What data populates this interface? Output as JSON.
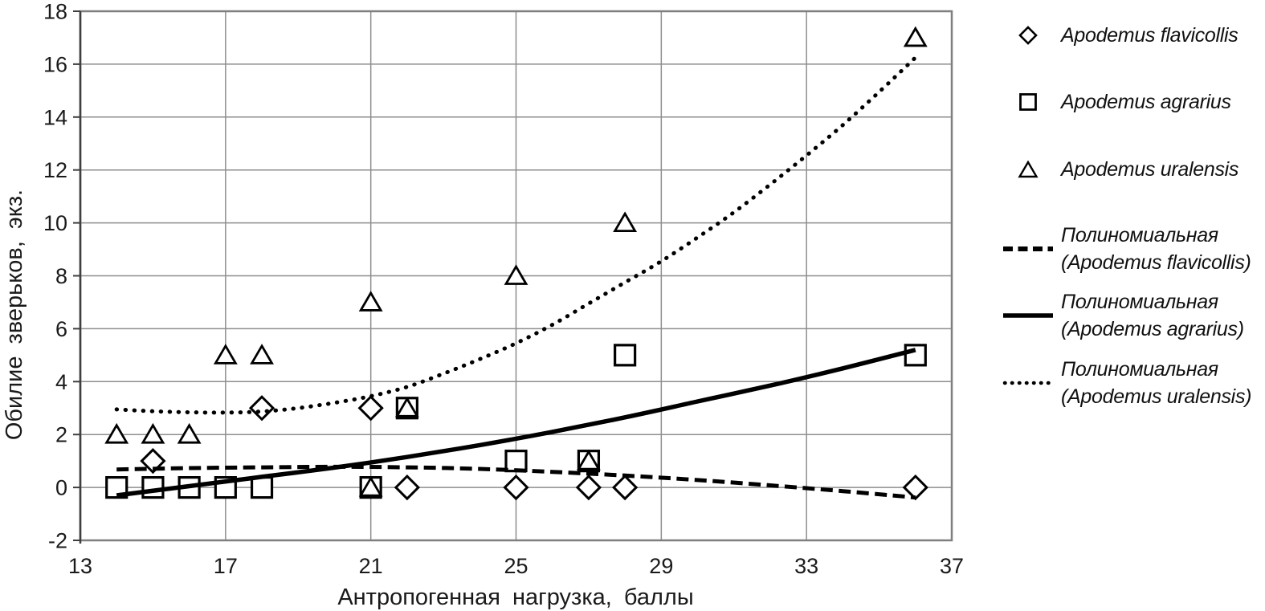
{
  "chart_data": {
    "type": "scatter",
    "title": "",
    "xlabel": "Антропогенная нагрузка, баллы",
    "ylabel": "Обилие зверьков, экз.",
    "xlim": [
      13,
      37
    ],
    "ylim": [
      -2,
      18
    ],
    "xticks": [
      13,
      17,
      21,
      25,
      29,
      33,
      37
    ],
    "yticks": [
      -2,
      0,
      2,
      4,
      6,
      8,
      10,
      12,
      14,
      16,
      18
    ],
    "grid": true,
    "legend_position": "right",
    "series": [
      {
        "name": "Apodemus flavicollis",
        "marker": "diamond",
        "points": [
          [
            15,
            1
          ],
          [
            18,
            3
          ],
          [
            21,
            3
          ],
          [
            22,
            0
          ],
          [
            25,
            0
          ],
          [
            27,
            0
          ],
          [
            28,
            0
          ],
          [
            36,
            0
          ]
        ]
      },
      {
        "name": "Apodemus agrarius",
        "marker": "square",
        "points": [
          [
            14,
            0
          ],
          [
            15,
            0
          ],
          [
            16,
            0
          ],
          [
            17,
            0
          ],
          [
            18,
            0
          ],
          [
            21,
            0
          ],
          [
            22,
            3
          ],
          [
            25,
            1
          ],
          [
            27,
            1
          ],
          [
            28,
            5
          ],
          [
            36,
            5
          ]
        ]
      },
      {
        "name": "Apodemus uralensis",
        "marker": "triangle",
        "points": [
          [
            14,
            2
          ],
          [
            15,
            2
          ],
          [
            16,
            2
          ],
          [
            17,
            5
          ],
          [
            18,
            5
          ],
          [
            21,
            0
          ],
          [
            21,
            7
          ],
          [
            22,
            3
          ],
          [
            25,
            8
          ],
          [
            27,
            1
          ],
          [
            28,
            10
          ],
          [
            36,
            17
          ]
        ]
      }
    ],
    "trendlines": [
      {
        "name": "Полиномиальная (Apodemus flavicollis)",
        "style": "dashed",
        "points": [
          [
            14,
            0.68
          ],
          [
            16,
            0.73
          ],
          [
            18,
            0.76
          ],
          [
            20,
            0.78
          ],
          [
            22,
            0.76
          ],
          [
            24,
            0.7
          ],
          [
            26,
            0.59
          ],
          [
            28,
            0.45
          ],
          [
            30,
            0.28
          ],
          [
            32,
            0.08
          ],
          [
            34,
            -0.14
          ],
          [
            36,
            -0.38
          ]
        ]
      },
      {
        "name": "Полиномиальная (Apodemus agrarius)",
        "style": "solid",
        "points": [
          [
            14,
            -0.3
          ],
          [
            16,
            0.05
          ],
          [
            18,
            0.4
          ],
          [
            20,
            0.75
          ],
          [
            22,
            1.15
          ],
          [
            24,
            1.6
          ],
          [
            26,
            2.1
          ],
          [
            28,
            2.65
          ],
          [
            30,
            3.25
          ],
          [
            32,
            3.85
          ],
          [
            34,
            4.5
          ],
          [
            36,
            5.2
          ]
        ]
      },
      {
        "name": "Полиномиальная (Apodemus uralensis)",
        "style": "dotted",
        "points": [
          [
            14,
            2.95
          ],
          [
            15,
            2.88
          ],
          [
            16,
            2.84
          ],
          [
            17,
            2.83
          ],
          [
            18,
            2.87
          ],
          [
            19,
            3.0
          ],
          [
            20,
            3.2
          ],
          [
            21,
            3.45
          ],
          [
            22,
            3.8
          ],
          [
            23,
            4.3
          ],
          [
            24,
            4.85
          ],
          [
            25,
            5.45
          ],
          [
            26,
            6.15
          ],
          [
            27,
            6.95
          ],
          [
            28,
            7.75
          ],
          [
            29,
            8.55
          ],
          [
            30,
            9.45
          ],
          [
            31,
            10.4
          ],
          [
            32,
            11.45
          ],
          [
            33,
            12.55
          ],
          [
            34,
            13.7
          ],
          [
            35,
            14.95
          ],
          [
            36,
            16.25
          ]
        ]
      }
    ],
    "legend": {
      "entries": [
        {
          "glyph": "diamond",
          "lines": [
            "Apodemus flavicollis"
          ]
        },
        {
          "glyph": "square",
          "lines": [
            "Apodemus agrarius"
          ]
        },
        {
          "glyph": "triangle",
          "lines": [
            "Apodemus uralensis"
          ]
        },
        {
          "glyph": "dashed-line",
          "lines": [
            "Полиномиальная",
            "(Apodemus flavicollis)"
          ]
        },
        {
          "glyph": "solid-line",
          "lines": [
            "Полиномиальная",
            "(Apodemus agrarius)"
          ]
        },
        {
          "glyph": "dotted-line",
          "lines": [
            "Полиномиальная",
            "(Apodemus uralensis)"
          ]
        }
      ]
    },
    "colors": {
      "marker": "#000000",
      "trend": "#000000",
      "grid": "#8e8e8e",
      "border": "#7f7f7f",
      "axis": "#3f3f3f",
      "text": "#1a1a1a",
      "background": "#ffffff"
    }
  }
}
